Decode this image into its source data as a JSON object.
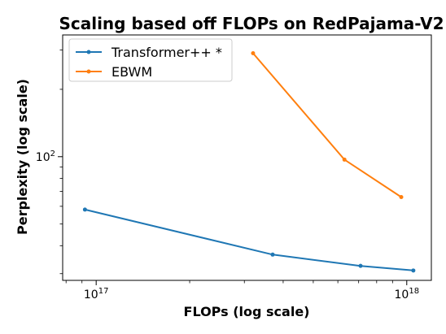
{
  "chart_data": {
    "type": "line",
    "title": "Scaling based off FLOPs on RedPajama-V2",
    "xlabel": "FLOPs (log scale)",
    "ylabel": "Perplexity (log scale)",
    "xscale": "log",
    "yscale": "log",
    "xlim": [
      7.8e+16,
      1.2e+18
    ],
    "ylim": [
      28,
      350
    ],
    "xticks": [
      {
        "value": 1e+17,
        "base": "10",
        "exp": "17"
      },
      {
        "value": 1e+18,
        "base": "10",
        "exp": "18"
      }
    ],
    "yticks": [
      {
        "value": 100,
        "base": "10",
        "exp": "2"
      }
    ],
    "legend_position": "top-left",
    "grid": false,
    "series": [
      {
        "name": "Transformer++ *",
        "color": "#1f77b4",
        "x": [
          9.2e+16,
          3.7e+17,
          7.1e+17,
          1.05e+18
        ],
        "y": [
          58,
          36.5,
          32.5,
          31
        ]
      },
      {
        "name": "EBWM",
        "color": "#ff7f0e",
        "x": [
          3.2e+17,
          6.3e+17,
          9.6e+17
        ],
        "y": [
          290,
          97,
          66
        ]
      }
    ]
  }
}
